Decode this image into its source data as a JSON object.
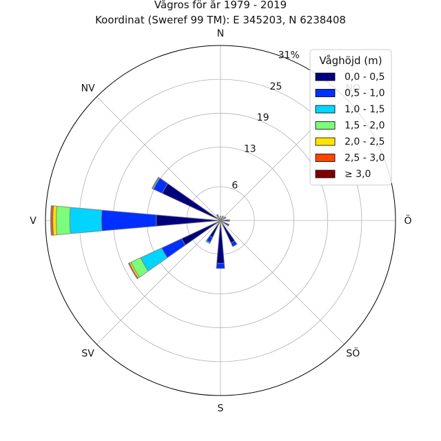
{
  "chart_data": {
    "type": "windrose",
    "title": "Vågros för år 1979 - 2019",
    "subtitle": "Koordinat (Sweref 99 TM): E 345203, N 6238408",
    "direction_labels": [
      "N",
      "NO",
      "Ö",
      "SÖ",
      "S",
      "SV",
      "V",
      "NV"
    ],
    "radial_tick_labels": [
      "6",
      "13",
      "19",
      "25",
      "31%"
    ],
    "radial_ticks": [
      6,
      13,
      19,
      25,
      31
    ],
    "rmax": 31,
    "legend": {
      "title": "Våghöjd (m)",
      "placement": "top-right",
      "entries": [
        "0,0 - 0,5",
        "0,5 - 1,0",
        "1,0 - 1,5",
        "1,5 - 2,0",
        "2,0 - 2,5",
        "2,5 - 3,0",
        "≥ 3,0"
      ]
    },
    "class_colors": [
      "#00007f",
      "#0030ff",
      "#00d5ff",
      "#7bff7b",
      "#ffe400",
      "#ff4400",
      "#7f0000"
    ],
    "grid": true,
    "sectors": [
      {
        "dir": 0,
        "values": [
          0.7,
          0.1,
          0,
          0,
          0,
          0,
          0
        ]
      },
      {
        "dir": 30,
        "values": [
          0.8,
          0.1,
          0,
          0,
          0,
          0,
          0
        ]
      },
      {
        "dir": 60,
        "values": [
          1.0,
          0.1,
          0,
          0,
          0,
          0,
          0
        ]
      },
      {
        "dir": 90,
        "values": [
          1.4,
          0.2,
          0,
          0,
          0,
          0,
          0
        ]
      },
      {
        "dir": 120,
        "values": [
          1.5,
          0.2,
          0,
          0,
          0,
          0,
          0
        ]
      },
      {
        "dir": 150,
        "values": [
          4.4,
          0.7,
          0,
          0,
          0,
          0,
          0
        ]
      },
      {
        "dir": 180,
        "values": [
          7.6,
          0.9,
          0,
          0,
          0,
          0,
          0
        ]
      },
      {
        "dir": 210,
        "values": [
          3.3,
          1.0,
          0.2,
          0,
          0,
          0,
          0
        ]
      },
      {
        "dir": 240,
        "values": [
          7.6,
          3.9,
          4.1,
          1.9,
          0.3,
          0.2,
          0
        ]
      },
      {
        "dir": 270,
        "values": [
          11.4,
          9.7,
          5.6,
          2.4,
          0.6,
          0.3,
          0.1
        ]
      },
      {
        "dir": 300,
        "values": [
          11.4,
          1.7,
          0.2,
          0.1,
          0,
          0,
          0
        ]
      },
      {
        "dir": 330,
        "values": [
          1.0,
          0.2,
          0,
          0,
          0,
          0,
          0
        ]
      }
    ]
  }
}
